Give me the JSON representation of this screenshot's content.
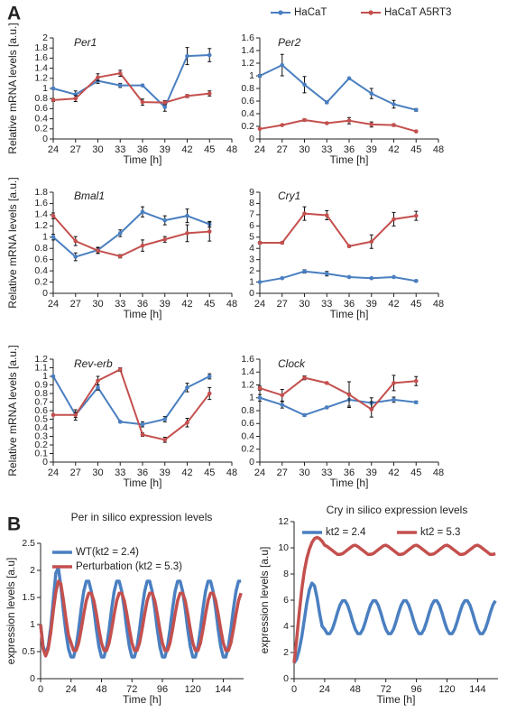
{
  "panel_labels": [
    "A",
    "B"
  ],
  "chart_data": [
    {
      "type": "line",
      "title": "Per1",
      "ylabel": "Relative mRNA levels [a.u.]",
      "xlabel": "Time [h]",
      "x": [
        24,
        27,
        30,
        33,
        36,
        39,
        42,
        45
      ],
      "xlim": [
        24,
        48
      ],
      "xticks": [
        24,
        27,
        30,
        33,
        36,
        39,
        42,
        45,
        48
      ],
      "ylim": [
        0,
        2
      ],
      "yticks": [
        0,
        0.2,
        0.4,
        0.6,
        0.8,
        1,
        1.2,
        1.4,
        1.6,
        1.8,
        2
      ],
      "markers": true,
      "series": [
        {
          "color": "#4a7fc1",
          "values": [
            1.0,
            0.88,
            1.15,
            1.06,
            1.06,
            0.63,
            1.64,
            1.66
          ],
          "errors": [
            0.02,
            0.07,
            0.05,
            0.04,
            0.02,
            0.08,
            0.17,
            0.13
          ]
        },
        {
          "color": "#c4504e",
          "values": [
            0.77,
            0.8,
            1.22,
            1.3,
            0.73,
            0.72,
            0.85,
            0.9
          ],
          "errors": [
            0.03,
            0.06,
            0.07,
            0.06,
            0.06,
            0.04,
            0.03,
            0.05
          ]
        }
      ]
    },
    {
      "type": "line",
      "title": "Per2",
      "xlabel": "Time [h]",
      "legend": "top",
      "x": [
        24,
        27,
        30,
        33,
        36,
        39,
        42,
        45
      ],
      "xlim": [
        24,
        48
      ],
      "xticks": [
        24,
        27,
        30,
        33,
        36,
        39,
        42,
        45,
        48
      ],
      "ylim": [
        0,
        1.6
      ],
      "yticks": [
        0,
        0.2,
        0.4,
        0.6,
        0.8,
        1,
        1.2,
        1.4,
        1.6
      ],
      "markers": true,
      "series": [
        {
          "name": "HaCaT",
          "color": "#4a7fc1",
          "values": [
            1.0,
            1.17,
            0.86,
            0.58,
            0.96,
            0.72,
            0.55,
            0.46
          ],
          "errors": [
            0.02,
            0.17,
            0.13,
            0.02,
            0.01,
            0.08,
            0.06,
            0.02
          ]
        },
        {
          "name": "HaCaT A5RT3",
          "color": "#c4504e",
          "values": [
            0.16,
            0.22,
            0.3,
            0.25,
            0.29,
            0.23,
            0.22,
            0.12
          ],
          "errors": [
            0.01,
            0.01,
            0.02,
            0.01,
            0.05,
            0.04,
            0.02,
            0.01
          ]
        }
      ]
    },
    {
      "type": "line",
      "title": "Bmal1",
      "ylabel": "Relative mRNA levels [a.u.]",
      "xlabel": "Time [h]",
      "x": [
        24,
        27,
        30,
        33,
        36,
        39,
        42,
        45
      ],
      "xlim": [
        24,
        48
      ],
      "xticks": [
        24,
        27,
        30,
        33,
        36,
        39,
        42,
        45,
        48
      ],
      "ylim": [
        0,
        1.8
      ],
      "yticks": [
        0,
        0.2,
        0.4,
        0.6,
        0.8,
        1,
        1.2,
        1.4,
        1.6,
        1.8
      ],
      "markers": true,
      "series": [
        {
          "color": "#4a7fc1",
          "values": [
            1.0,
            0.65,
            0.77,
            1.07,
            1.45,
            1.3,
            1.38,
            1.23
          ],
          "errors": [
            0.05,
            0.07,
            0.05,
            0.06,
            0.09,
            0.08,
            0.12,
            0.05
          ]
        },
        {
          "color": "#c4504e",
          "values": [
            1.38,
            0.93,
            0.76,
            0.66,
            0.85,
            0.96,
            1.07,
            1.1
          ],
          "errors": [
            0.05,
            0.08,
            0.05,
            0.03,
            0.1,
            0.05,
            0.15,
            0.17
          ]
        }
      ]
    },
    {
      "type": "line",
      "title": "Cry1",
      "xlabel": "Time [h]",
      "x": [
        24,
        27,
        30,
        33,
        36,
        39,
        42,
        45
      ],
      "xlim": [
        24,
        48
      ],
      "xticks": [
        24,
        27,
        30,
        33,
        36,
        39,
        42,
        45,
        48
      ],
      "ylim": [
        0,
        9
      ],
      "yticks": [
        0,
        1,
        2,
        3,
        4,
        5,
        6,
        7,
        8,
        9
      ],
      "markers": true,
      "series": [
        {
          "color": "#4a7fc1",
          "values": [
            1.0,
            1.35,
            1.95,
            1.75,
            1.45,
            1.35,
            1.45,
            1.1
          ],
          "errors": [
            0.02,
            0.05,
            0.15,
            0.2,
            0.05,
            0.05,
            0.05,
            0.1
          ]
        },
        {
          "color": "#c4504e",
          "values": [
            4.5,
            4.5,
            7.1,
            6.95,
            4.2,
            4.6,
            6.6,
            6.9
          ],
          "errors": [
            0.1,
            0.1,
            0.6,
            0.4,
            0.1,
            0.6,
            0.6,
            0.4
          ]
        }
      ]
    },
    {
      "type": "line",
      "title": "Rev-erb",
      "ylabel": "Relative mRNA levels [a.u.]",
      "xlabel": "Time [h]",
      "x": [
        24,
        27,
        30,
        33,
        36,
        39,
        42,
        45
      ],
      "xlim": [
        24,
        48
      ],
      "xticks": [
        24,
        27,
        30,
        33,
        36,
        39,
        42,
        45,
        48
      ],
      "ylim": [
        0,
        1.2
      ],
      "yticks": [
        0,
        0.1,
        0.2,
        0.3,
        0.4,
        0.5,
        0.6,
        0.7,
        0.8,
        0.9,
        1,
        1.1,
        1.2
      ],
      "markers": true,
      "series": [
        {
          "color": "#4a7fc1",
          "values": [
            1.0,
            0.55,
            0.87,
            0.47,
            0.44,
            0.5,
            0.87,
            1.0
          ],
          "errors": [
            0.01,
            0.03,
            0.03,
            0.01,
            0.03,
            0.03,
            0.05,
            0.03
          ]
        },
        {
          "color": "#c4504e",
          "values": [
            0.55,
            0.55,
            0.95,
            1.08,
            0.32,
            0.26,
            0.46,
            0.8
          ],
          "errors": [
            0.01,
            0.06,
            0.05,
            0.02,
            0.02,
            0.03,
            0.05,
            0.07
          ]
        }
      ]
    },
    {
      "type": "line",
      "title": "Clock",
      "xlabel": "Time [h]",
      "x": [
        24,
        27,
        30,
        33,
        36,
        39,
        42,
        45
      ],
      "xlim": [
        24,
        48
      ],
      "xticks": [
        24,
        27,
        30,
        33,
        36,
        39,
        42,
        45,
        48
      ],
      "ylim": [
        0,
        1.6
      ],
      "yticks": [
        0,
        0.2,
        0.4,
        0.6,
        0.8,
        1,
        1.2,
        1.4,
        1.6
      ],
      "markers": true,
      "series": [
        {
          "color": "#4a7fc1",
          "values": [
            1.0,
            0.89,
            0.73,
            0.85,
            0.97,
            0.92,
            0.97,
            0.93
          ],
          "errors": [
            0.05,
            0.05,
            0.02,
            0.01,
            0.1,
            0.08,
            0.04,
            0.02
          ]
        },
        {
          "color": "#c4504e",
          "values": [
            1.15,
            1.04,
            1.31,
            1.23,
            1.05,
            0.82,
            1.23,
            1.26
          ],
          "errors": [
            0.03,
            0.09,
            0.03,
            0.01,
            0.2,
            0.12,
            0.12,
            0.07
          ]
        }
      ]
    },
    {
      "type": "line",
      "title": "Per in silico expression levels",
      "ylabel": "expression levels [a.u]",
      "xlabel": "Time [h]",
      "legend": "upper left",
      "x": [
        0,
        2,
        4,
        6,
        8,
        10,
        12,
        14,
        16,
        18,
        20,
        22,
        24,
        26,
        28,
        30,
        32,
        34,
        36,
        38,
        40,
        42,
        44,
        46,
        48,
        50,
        52,
        54,
        56,
        58,
        60,
        62,
        64,
        66,
        68,
        70,
        72,
        74,
        76,
        78,
        80,
        82,
        84,
        86,
        88,
        90,
        92,
        94,
        96,
        98,
        100,
        102,
        104,
        106,
        108,
        110,
        112,
        114,
        116,
        118,
        120,
        122,
        124,
        126,
        128,
        130,
        132,
        134,
        136,
        138,
        140,
        142,
        144,
        146,
        148,
        150,
        152,
        154,
        156,
        158
      ],
      "xlim": [
        0,
        160
      ],
      "xticks": [
        0,
        24,
        48,
        72,
        96,
        120,
        144
      ],
      "ylim": [
        0,
        2.5
      ],
      "yticks": [
        0,
        0.5,
        1,
        1.5,
        2,
        2.5
      ],
      "series": [
        {
          "name": "WT(kt2 = 2.4)",
          "color": "#4a7fc1",
          "values": [
            1.0,
            0.6,
            0.45,
            0.6,
            0.95,
            1.45,
            1.95,
            2.05,
            1.7,
            1.25,
            0.85,
            0.55,
            0.4,
            0.4,
            0.59,
            0.91,
            1.29,
            1.61,
            1.8,
            1.8,
            1.61,
            1.29,
            0.91,
            0.59,
            0.4,
            0.4,
            0.59,
            0.91,
            1.29,
            1.61,
            1.8,
            1.8,
            1.61,
            1.29,
            0.91,
            0.59,
            0.4,
            0.4,
            0.59,
            0.91,
            1.29,
            1.61,
            1.8,
            1.8,
            1.61,
            1.29,
            0.91,
            0.59,
            0.4,
            0.4,
            0.59,
            0.91,
            1.29,
            1.61,
            1.8,
            1.8,
            1.61,
            1.29,
            0.91,
            0.59,
            0.4,
            0.4,
            0.59,
            0.91,
            1.29,
            1.61,
            1.8,
            1.8,
            1.61,
            1.29,
            0.91,
            0.59,
            0.4,
            0.4,
            0.59,
            0.91,
            1.29,
            1.61,
            1.8,
            1.8
          ]
        },
        {
          "name": "Perturbation (kt2 = 5.3)",
          "color": "#c4504e",
          "values": [
            1.0,
            0.55,
            0.42,
            0.55,
            0.85,
            1.25,
            1.6,
            1.8,
            1.75,
            1.45,
            1.1,
            0.8,
            0.66,
            0.52,
            0.52,
            0.66,
            0.91,
            1.19,
            1.44,
            1.58,
            1.58,
            1.44,
            1.19,
            0.91,
            0.66,
            0.52,
            0.52,
            0.66,
            0.91,
            1.19,
            1.44,
            1.58,
            1.58,
            1.44,
            1.19,
            0.91,
            0.66,
            0.52,
            0.52,
            0.66,
            0.91,
            1.19,
            1.44,
            1.58,
            1.58,
            1.44,
            1.19,
            0.91,
            0.66,
            0.52,
            0.52,
            0.66,
            0.91,
            1.19,
            1.44,
            1.58,
            1.58,
            1.44,
            1.19,
            0.91,
            0.66,
            0.52,
            0.52,
            0.66,
            0.91,
            1.19,
            1.44,
            1.58,
            1.58,
            1.44,
            1.19,
            0.91,
            0.66,
            0.52,
            0.52,
            0.66,
            0.91,
            1.19,
            1.44,
            1.58
          ]
        }
      ]
    },
    {
      "type": "line",
      "title": "Cry in silico expression levels",
      "ylabel": "expression levels [a.u]",
      "xlabel": "Time [h]",
      "legend": "top",
      "x": [
        0,
        2,
        4,
        6,
        8,
        10,
        12,
        14,
        16,
        18,
        20,
        22,
        24,
        26,
        28,
        30,
        32,
        34,
        36,
        38,
        40,
        42,
        44,
        46,
        48,
        50,
        52,
        54,
        56,
        58,
        60,
        62,
        64,
        66,
        68,
        70,
        72,
        74,
        76,
        78,
        80,
        82,
        84,
        86,
        88,
        90,
        92,
        94,
        96,
        98,
        100,
        102,
        104,
        106,
        108,
        110,
        112,
        114,
        116,
        118,
        120,
        122,
        124,
        126,
        128,
        130,
        132,
        134,
        136,
        138,
        140,
        142,
        144,
        146,
        148,
        150,
        152,
        154,
        156,
        158
      ],
      "xlim": [
        0,
        160
      ],
      "xticks": [
        0,
        24,
        48,
        72,
        96,
        120,
        144
      ],
      "ylim": [
        0,
        12
      ],
      "yticks": [
        0,
        2,
        4,
        6,
        8,
        10,
        12
      ],
      "series": [
        {
          "name": "kt2 = 2.4",
          "color": "#4a7fc1",
          "values": [
            1.2,
            1.5,
            2.2,
            3.2,
            4.5,
            5.8,
            6.8,
            7.3,
            7.1,
            6.2,
            5.0,
            4.0,
            3.78,
            3.44,
            3.44,
            3.78,
            4.36,
            5.04,
            5.62,
            5.96,
            5.96,
            5.62,
            5.04,
            4.36,
            3.78,
            3.44,
            3.44,
            3.78,
            4.36,
            5.04,
            5.62,
            5.96,
            5.96,
            5.62,
            5.04,
            4.36,
            3.78,
            3.44,
            3.44,
            3.78,
            4.36,
            5.04,
            5.62,
            5.96,
            5.96,
            5.62,
            5.04,
            4.36,
            3.78,
            3.44,
            3.44,
            3.78,
            4.36,
            5.04,
            5.62,
            5.96,
            5.96,
            5.62,
            5.04,
            4.36,
            3.78,
            3.44,
            3.44,
            3.78,
            4.36,
            5.04,
            5.62,
            5.96,
            5.96,
            5.62,
            5.04,
            4.36,
            3.78,
            3.44,
            3.44,
            3.78,
            4.36,
            5.04,
            5.62,
            5.96
          ]
        },
        {
          "name": "kt2 = 5.3",
          "color": "#c4504e",
          "values": [
            1.2,
            3.0,
            5.0,
            6.8,
            8.2,
            9.2,
            9.9,
            10.4,
            10.7,
            10.8,
            10.7,
            10.5,
            10.2,
            10.1,
            9.95,
            9.8,
            9.65,
            9.5,
            9.5,
            9.55,
            9.7,
            9.85,
            10.0,
            10.15,
            10.2,
            10.1,
            9.95,
            9.8,
            9.65,
            9.5,
            9.5,
            9.55,
            9.7,
            9.85,
            10.0,
            10.15,
            10.2,
            10.1,
            9.95,
            9.8,
            9.65,
            9.5,
            9.5,
            9.55,
            9.7,
            9.85,
            10.0,
            10.15,
            10.2,
            10.1,
            9.95,
            9.8,
            9.65,
            9.5,
            9.5,
            9.55,
            9.7,
            9.85,
            10.0,
            10.15,
            10.2,
            10.1,
            9.95,
            9.8,
            9.65,
            9.5,
            9.5,
            9.55,
            9.7,
            9.85,
            10.0,
            10.15,
            10.2,
            10.1,
            9.95,
            9.8,
            9.65,
            9.5,
            9.5,
            9.55
          ]
        }
      ]
    }
  ]
}
